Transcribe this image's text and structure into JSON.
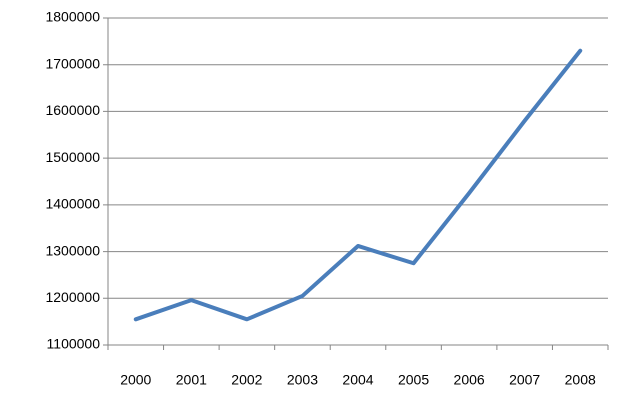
{
  "chart_data": {
    "type": "line",
    "categories": [
      "2000",
      "2001",
      "2002",
      "2003",
      "2004",
      "2005",
      "2006",
      "2007",
      "2008"
    ],
    "values": [
      1155000,
      1196000,
      1155000,
      1205000,
      1312000,
      1275000,
      1425000,
      1580000,
      1730000
    ],
    "color": "#4a7ebb",
    "ylim": [
      1100000,
      1800000
    ],
    "yticks": [
      1100000,
      1200000,
      1300000,
      1400000,
      1500000,
      1600000,
      1700000,
      1800000
    ],
    "grid": true
  }
}
